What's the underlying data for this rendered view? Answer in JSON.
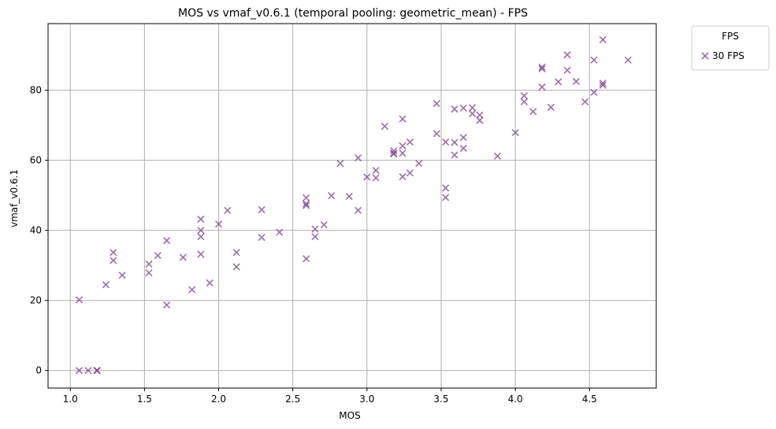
{
  "chart_data": {
    "type": "scatter",
    "title": "MOS vs vmaf_v0.6.1 (temporal pooling: geometric_mean) - FPS",
    "xlabel": "MOS",
    "ylabel": "vmaf_v0.6.1",
    "xlim": [
      0.85,
      4.95
    ],
    "ylim": [
      -5,
      99
    ],
    "xticks": [
      "1.0",
      "1.5",
      "2.0",
      "2.5",
      "3.0",
      "3.5",
      "4.0",
      "4.5"
    ],
    "yticks": [
      "0",
      "20",
      "40",
      "60",
      "80"
    ],
    "grid": true,
    "legend": {
      "title": "FPS",
      "placement": "upper-right-outside",
      "entries": [
        "30 FPS"
      ]
    },
    "series": [
      {
        "name": "30 FPS",
        "marker": "x",
        "color": "#7b3f8c",
        "points": [
          [
            1.06,
            20.2
          ],
          [
            1.06,
            0.0
          ],
          [
            1.12,
            0.0
          ],
          [
            1.18,
            0.0
          ],
          [
            1.18,
            0.0
          ],
          [
            1.18,
            0.0
          ],
          [
            1.24,
            24.5
          ],
          [
            1.29,
            33.7
          ],
          [
            1.29,
            31.4
          ],
          [
            1.35,
            27.2
          ],
          [
            1.53,
            30.4
          ],
          [
            1.53,
            27.9
          ],
          [
            1.59,
            32.8
          ],
          [
            1.65,
            37.1
          ],
          [
            1.65,
            18.7
          ],
          [
            1.76,
            32.3
          ],
          [
            1.82,
            23.1
          ],
          [
            1.88,
            43.2
          ],
          [
            1.88,
            40.0
          ],
          [
            1.88,
            38.2
          ],
          [
            1.88,
            33.2
          ],
          [
            1.94,
            25.0
          ],
          [
            2.0,
            41.8
          ],
          [
            2.06,
            45.7
          ],
          [
            2.12,
            33.7
          ],
          [
            2.12,
            29.6
          ],
          [
            2.29,
            45.9
          ],
          [
            2.29,
            38.0
          ],
          [
            2.41,
            39.5
          ],
          [
            2.59,
            49.3
          ],
          [
            2.59,
            47.6
          ],
          [
            2.59,
            47.1
          ],
          [
            2.59,
            31.9
          ],
          [
            2.65,
            40.4
          ],
          [
            2.65,
            38.2
          ],
          [
            2.71,
            41.6
          ],
          [
            2.76,
            49.9
          ],
          [
            2.82,
            59.1
          ],
          [
            2.88,
            49.7
          ],
          [
            2.94,
            60.7
          ],
          [
            2.94,
            45.7
          ],
          [
            3.0,
            55.2
          ],
          [
            3.06,
            57.1
          ],
          [
            3.06,
            55.0
          ],
          [
            3.12,
            69.7
          ],
          [
            3.18,
            62.7
          ],
          [
            3.18,
            62.0
          ],
          [
            3.18,
            61.8
          ],
          [
            3.24,
            71.8
          ],
          [
            3.24,
            64.1
          ],
          [
            3.24,
            62.0
          ],
          [
            3.24,
            55.3
          ],
          [
            3.29,
            65.2
          ],
          [
            3.29,
            56.4
          ],
          [
            3.35,
            59.1
          ],
          [
            3.47,
            76.2
          ],
          [
            3.47,
            67.6
          ],
          [
            3.53,
            65.2
          ],
          [
            3.53,
            52.1
          ],
          [
            3.53,
            49.4
          ],
          [
            3.59,
            74.6
          ],
          [
            3.59,
            65.1
          ],
          [
            3.59,
            61.5
          ],
          [
            3.65,
            74.9
          ],
          [
            3.65,
            66.5
          ],
          [
            3.65,
            63.4
          ],
          [
            3.71,
            75.0
          ],
          [
            3.71,
            73.3
          ],
          [
            3.76,
            72.9
          ],
          [
            3.76,
            71.4
          ],
          [
            3.88,
            61.2
          ],
          [
            4.0,
            67.9
          ],
          [
            4.06,
            78.4
          ],
          [
            4.06,
            76.7
          ],
          [
            4.12,
            73.9
          ],
          [
            4.18,
            86.6
          ],
          [
            4.18,
            86.1
          ],
          [
            4.18,
            80.9
          ],
          [
            4.24,
            75.1
          ],
          [
            4.29,
            82.4
          ],
          [
            4.35,
            90.1
          ],
          [
            4.35,
            85.7
          ],
          [
            4.41,
            82.5
          ],
          [
            4.47,
            76.7
          ],
          [
            4.53,
            88.6
          ],
          [
            4.53,
            79.4
          ],
          [
            4.59,
            94.4
          ],
          [
            4.59,
            82.0
          ],
          [
            4.59,
            81.4
          ],
          [
            4.76,
            88.6
          ]
        ]
      }
    ]
  }
}
